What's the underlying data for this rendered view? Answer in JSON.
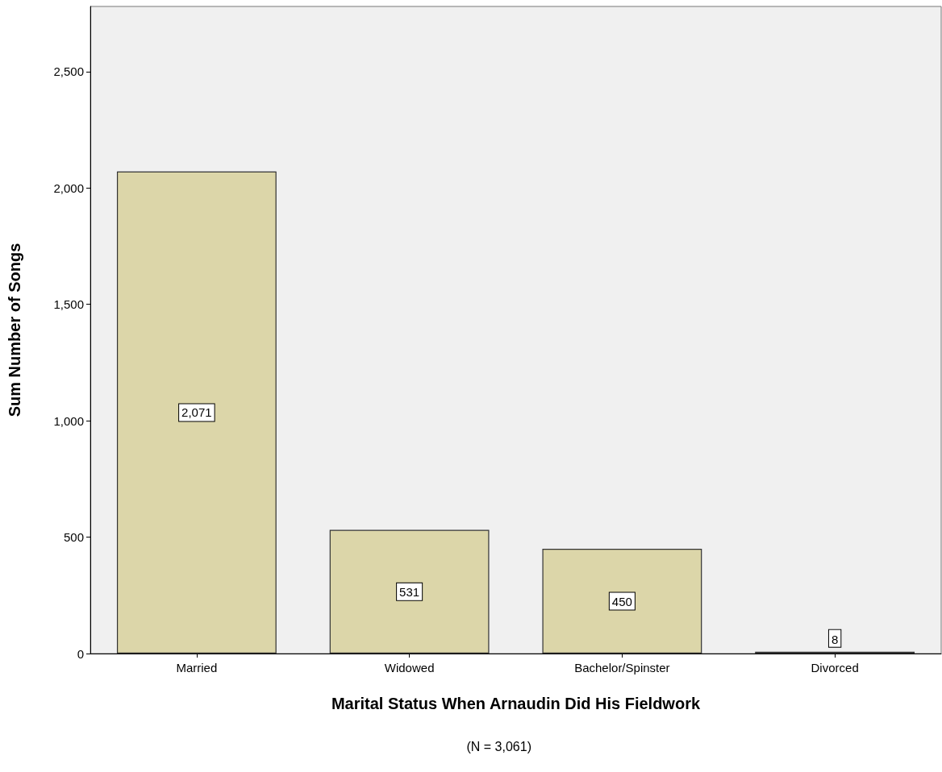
{
  "chart_data": {
    "type": "bar",
    "xlabel": "Marital Status When Arnaudin Did His Fieldwork",
    "ylabel": "Sum Number of Songs",
    "categories": [
      "Married",
      "Widowed",
      "Bachelor/Spinster",
      "Divorced"
    ],
    "values": [
      2071,
      531,
      450,
      8
    ],
    "color": "#dcd6a9",
    "value_labels": [
      "2,071",
      "531",
      "450",
      "8"
    ],
    "ylim": [
      0,
      2780
    ],
    "yticks": [
      0,
      {
        "value": 500,
        "label": "500"
      },
      {
        "value": 1000,
        "label": "1,000"
      },
      {
        "value": 1500,
        "label": "1,500"
      },
      {
        "value": 2000,
        "label": "2,000"
      },
      {
        "value": 2500,
        "label": "2,500"
      }
    ],
    "grid": false,
    "annotations": [
      "(N = 3,061)"
    ]
  }
}
